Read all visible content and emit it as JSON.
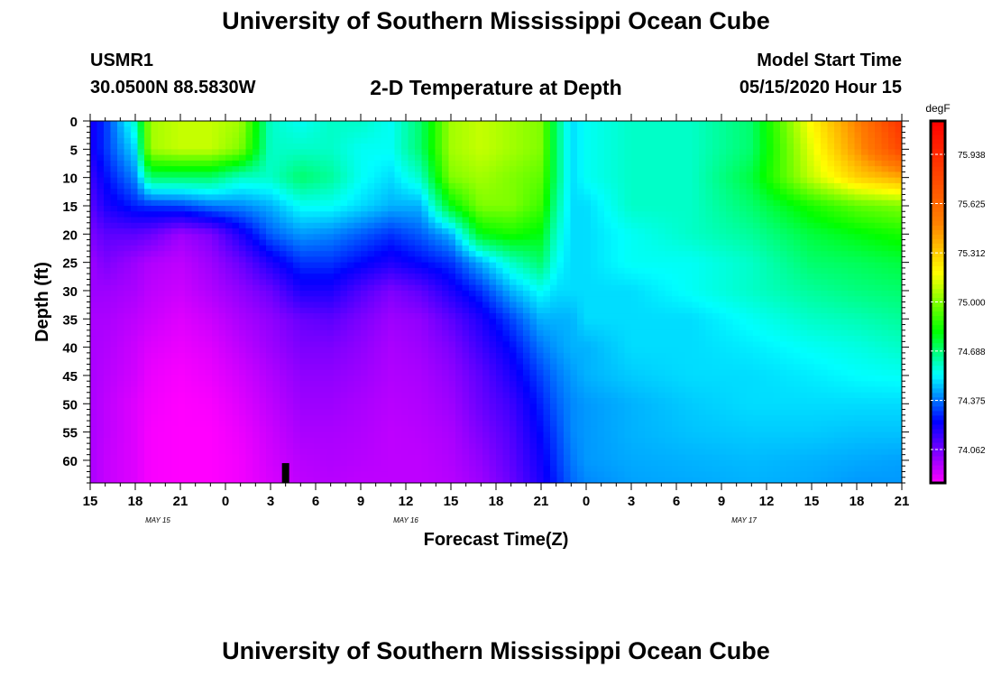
{
  "header": {
    "title": "University of Southern Mississippi Ocean Cube",
    "station": "USMR1",
    "location": "30.0500N 88.5830W",
    "plot_title": "2-D Temperature at Depth",
    "model_start_label": "Model Start Time",
    "model_start_value": "05/15/2020 Hour 15"
  },
  "footer": {
    "title": "University of Southern Mississippi Ocean Cube"
  },
  "chart_data": {
    "type": "heatmap",
    "title": "2-D Temperature at Depth",
    "xlabel": "Forecast Time(Z)",
    "ylabel": "Depth (ft)",
    "x_range_hours": [
      0,
      54
    ],
    "y_range_ft": [
      0,
      64
    ],
    "y_inverted": true,
    "x_ticks": [
      "15",
      "18",
      "21",
      "0",
      "3",
      "6",
      "9",
      "12",
      "15",
      "18",
      "21",
      "0",
      "3",
      "6",
      "9",
      "12",
      "15",
      "18",
      "21"
    ],
    "y_ticks": [
      "0",
      "5",
      "10",
      "15",
      "20",
      "25",
      "30",
      "35",
      "40",
      "45",
      "50",
      "55",
      "60"
    ],
    "date_labels": [
      {
        "label": "MAY 15",
        "hour": 4.5
      },
      {
        "label": "MAY 16",
        "hour": 21
      },
      {
        "label": "MAY 17",
        "hour": 43.5
      }
    ],
    "current_time_marker_hour": 13,
    "colorbar": {
      "unit": "degF",
      "min": 73.85,
      "max": 76.15,
      "tick_values": [
        75.938,
        75.625,
        75.312,
        75.0,
        74.688,
        74.375,
        74.062
      ],
      "tick_labels": [
        "75.938",
        "75.625",
        "75.312",
        "75.000",
        "74.688",
        "74.375",
        "74.062"
      ]
    },
    "depth_levels_ft": [
      0,
      5,
      10,
      15,
      20,
      25,
      30,
      35,
      40,
      45,
      50,
      55,
      60,
      64
    ],
    "time_hours": [
      0,
      1,
      3,
      4,
      6,
      8,
      10,
      12,
      14,
      16,
      18,
      20,
      22,
      24,
      26,
      28,
      30,
      31,
      32,
      33,
      36,
      40,
      44,
      48,
      51,
      54
    ],
    "temperature_degF": [
      [
        74.2,
        74.3,
        74.6,
        75.05,
        75.1,
        75.1,
        75.05,
        74.6,
        74.55,
        74.6,
        74.6,
        74.55,
        74.7,
        75.05,
        75.1,
        75.05,
        75.0,
        74.7,
        74.5,
        74.55,
        74.6,
        74.6,
        74.7,
        75.2,
        75.5,
        75.9
      ],
      [
        74.2,
        74.3,
        74.5,
        75.05,
        75.1,
        75.1,
        75.0,
        74.6,
        74.6,
        74.6,
        74.55,
        74.55,
        74.7,
        75.05,
        75.1,
        75.05,
        75.0,
        74.7,
        74.5,
        74.55,
        74.6,
        74.6,
        74.7,
        75.15,
        75.45,
        75.8
      ],
      [
        74.15,
        74.25,
        74.4,
        74.7,
        74.7,
        74.7,
        74.6,
        74.6,
        74.7,
        74.65,
        74.55,
        74.5,
        74.6,
        75.0,
        75.05,
        75.0,
        74.95,
        74.7,
        74.5,
        74.55,
        74.6,
        74.6,
        74.75,
        75.1,
        75.3,
        75.4
      ],
      [
        74.1,
        74.2,
        74.28,
        74.3,
        74.32,
        74.38,
        74.4,
        74.45,
        74.55,
        74.55,
        74.5,
        74.45,
        74.45,
        74.8,
        75.0,
        75.0,
        74.9,
        74.65,
        74.5,
        74.5,
        74.6,
        74.6,
        74.7,
        74.85,
        74.95,
        75.0
      ],
      [
        74.05,
        74.1,
        74.1,
        74.08,
        74.0,
        74.05,
        74.2,
        74.35,
        74.42,
        74.4,
        74.35,
        74.3,
        74.35,
        74.45,
        74.8,
        74.85,
        74.8,
        74.6,
        74.5,
        74.5,
        74.55,
        74.6,
        74.65,
        74.75,
        74.8,
        74.85
      ],
      [
        74.0,
        74.05,
        74.0,
        73.97,
        73.95,
        74.0,
        74.08,
        74.2,
        74.3,
        74.3,
        74.25,
        74.2,
        74.25,
        74.3,
        74.45,
        74.6,
        74.7,
        74.55,
        74.5,
        74.5,
        74.55,
        74.55,
        74.6,
        74.7,
        74.72,
        74.75
      ],
      [
        74.0,
        74.0,
        73.98,
        73.95,
        73.93,
        73.97,
        74.02,
        74.08,
        74.2,
        74.2,
        74.12,
        74.05,
        74.1,
        74.2,
        74.3,
        74.45,
        74.55,
        74.5,
        74.5,
        74.5,
        74.5,
        74.55,
        74.6,
        74.65,
        74.68,
        74.7
      ],
      [
        73.98,
        73.98,
        73.95,
        73.93,
        73.9,
        73.93,
        73.98,
        74.02,
        74.08,
        74.1,
        74.05,
        74.0,
        74.02,
        74.1,
        74.2,
        74.32,
        74.45,
        74.45,
        74.45,
        74.5,
        74.5,
        74.5,
        74.55,
        74.6,
        74.62,
        74.65
      ],
      [
        73.98,
        73.97,
        73.93,
        73.9,
        73.88,
        73.9,
        73.95,
        74.0,
        74.05,
        74.05,
        74.02,
        73.98,
        74.0,
        74.05,
        74.15,
        74.25,
        74.38,
        74.42,
        74.45,
        74.45,
        74.5,
        74.5,
        74.52,
        74.55,
        74.57,
        74.6
      ],
      [
        73.98,
        73.96,
        73.92,
        73.88,
        73.86,
        73.88,
        73.92,
        73.97,
        74.02,
        74.02,
        74.0,
        73.97,
        73.98,
        74.02,
        74.1,
        74.2,
        74.32,
        74.38,
        74.42,
        74.45,
        74.48,
        74.5,
        74.5,
        74.52,
        74.54,
        74.55
      ],
      [
        73.98,
        73.95,
        73.9,
        73.87,
        73.85,
        73.86,
        73.9,
        73.95,
        74.0,
        74.0,
        73.98,
        73.96,
        73.97,
        74.0,
        74.08,
        74.15,
        74.28,
        74.35,
        74.4,
        74.42,
        74.45,
        74.48,
        74.5,
        74.5,
        74.5,
        74.5
      ],
      [
        73.98,
        73.95,
        73.9,
        73.86,
        73.85,
        73.85,
        73.88,
        73.93,
        73.98,
        73.98,
        73.97,
        73.95,
        73.96,
        73.98,
        74.05,
        74.12,
        74.25,
        74.32,
        74.4,
        74.42,
        74.45,
        74.47,
        74.48,
        74.48,
        74.47,
        74.47
      ],
      [
        73.98,
        73.94,
        73.9,
        73.86,
        73.85,
        73.85,
        73.87,
        73.92,
        73.96,
        73.97,
        73.96,
        73.95,
        73.95,
        73.97,
        74.02,
        74.1,
        74.22,
        74.3,
        74.38,
        74.42,
        74.44,
        74.45,
        74.46,
        74.45,
        74.44,
        74.43
      ],
      [
        73.98,
        73.94,
        73.9,
        73.86,
        73.85,
        73.85,
        73.87,
        73.91,
        73.95,
        73.96,
        73.95,
        73.95,
        73.95,
        73.96,
        74.0,
        74.08,
        74.2,
        74.28,
        74.36,
        74.4,
        74.43,
        74.44,
        74.45,
        74.44,
        74.42,
        74.42
      ]
    ]
  }
}
